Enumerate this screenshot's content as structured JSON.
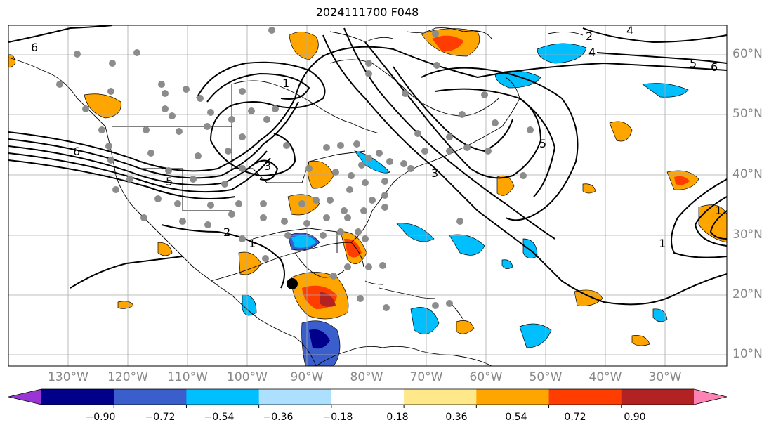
{
  "title": "2024111700 F048",
  "map": {
    "lat_labels": [
      "10°N",
      "20°N",
      "30°N",
      "40°N",
      "50°N",
      "60°N"
    ],
    "lon_labels": [
      "130°W",
      "120°W",
      "110°W",
      "100°W",
      "90°W",
      "80°W",
      "70°W",
      "60°W",
      "50°W",
      "40°W",
      "30°W"
    ],
    "contour_labels": [
      "6",
      "1",
      "6",
      "5",
      "2",
      "1",
      "4",
      "5",
      "6",
      "4",
      "2",
      "1",
      "1",
      "3",
      "5",
      "3"
    ],
    "colors": {
      "land_outline": "#000000",
      "contour": "#000000",
      "grid": "#aaaaaa",
      "station_dot": "#8c8c8c",
      "marker": "#000000"
    }
  },
  "colorbar": {
    "ticks": [
      "−0.90",
      "−0.72",
      "−0.54",
      "−0.36",
      "−0.18",
      "0.18",
      "0.36",
      "0.54",
      "0.72",
      "0.90"
    ],
    "colors": [
      "#9a34d6",
      "#00008b",
      "#3a5fcd",
      "#00bfff",
      "#addfff",
      "#ffffff",
      "#ffe88a",
      "#ffa500",
      "#ff3d00",
      "#b22222",
      "#ff82b4"
    ]
  }
}
